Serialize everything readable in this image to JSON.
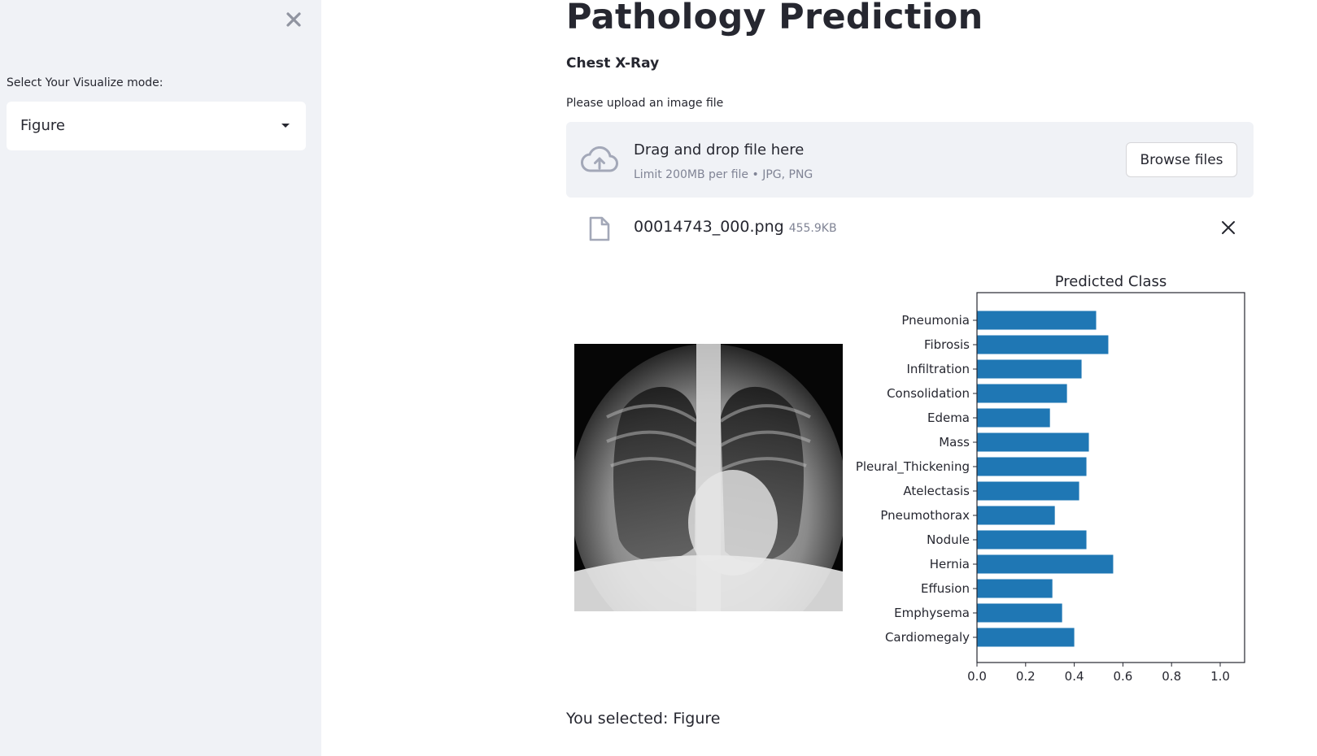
{
  "sidebar": {
    "close_icon": "close-icon",
    "select_label": "Select Your Visualize mode:",
    "selected_value": "Figure"
  },
  "main": {
    "title": "Pathology Prediction",
    "subtitle": "Chest X-Ray",
    "upload_label": "Please upload an image file",
    "dropzone": {
      "title": "Drag and drop file here",
      "limit": "Limit 200MB per file • JPG, PNG",
      "browse_label": "Browse files"
    },
    "file": {
      "name": "00014743_000.png",
      "size": "455.9KB"
    },
    "result_text": "You selected: Figure"
  },
  "colors": {
    "sidebar_bg": "#f0f2f6",
    "bar": "#1f77b4",
    "text": "#262730"
  },
  "chart_data": {
    "type": "bar",
    "orientation": "horizontal",
    "title": "Predicted Class",
    "xlabel": "",
    "ylabel": "",
    "xlim": [
      0,
      1.1
    ],
    "xticks": [
      "0.0",
      "0.2",
      "0.4",
      "0.6",
      "0.8",
      "1.0"
    ],
    "categories": [
      "Pneumonia",
      "Fibrosis",
      "Infiltration",
      "Consolidation",
      "Edema",
      "Mass",
      "Pleural_Thickening",
      "Atelectasis",
      "Pneumothorax",
      "Nodule",
      "Hernia",
      "Effusion",
      "Emphysema",
      "Cardiomegaly"
    ],
    "values": [
      0.49,
      0.54,
      0.43,
      0.37,
      0.3,
      0.46,
      0.45,
      0.42,
      0.32,
      0.45,
      0.56,
      0.31,
      0.35,
      0.4
    ]
  }
}
